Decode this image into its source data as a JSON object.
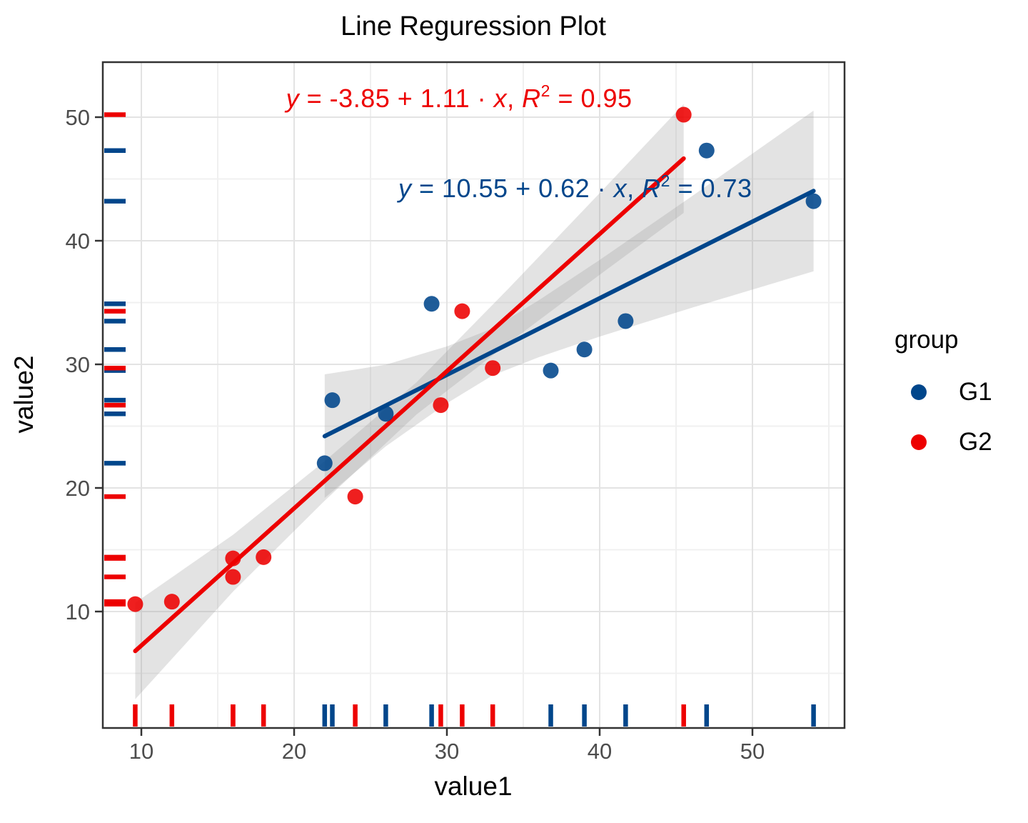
{
  "chart_data": {
    "type": "scatter",
    "title": "Line Reguression Plot",
    "xlabel": "value1",
    "ylabel": "value2",
    "xlim": [
      7.5,
      56
    ],
    "ylim": [
      0.5,
      54.5
    ],
    "x_ticks": [
      10,
      20,
      30,
      40,
      50
    ],
    "y_ticks": [
      10,
      20,
      30,
      40,
      50
    ],
    "x_minor": [
      15,
      25,
      35,
      45,
      55
    ],
    "y_minor": [
      5,
      15,
      25,
      35,
      45
    ],
    "grid": "on",
    "has_rug": true,
    "colors": {
      "g1": "#00468B",
      "g2": "#ED0000",
      "band": "#999999",
      "grid_major": "#e3e3e3",
      "grid_minor": "#f0f0f0",
      "axis_text": "#4d4d4d",
      "panel_border": "#333333"
    },
    "series": [
      {
        "name": "G1",
        "color": "#00468B",
        "points": [
          [
            22,
            22
          ],
          [
            22.5,
            27.1
          ],
          [
            26,
            26
          ],
          [
            29,
            34.9
          ],
          [
            36.8,
            29.5
          ],
          [
            39,
            31.2
          ],
          [
            41.7,
            33.5
          ],
          [
            47,
            47.3
          ],
          [
            54,
            43.2
          ]
        ],
        "regression": {
          "intercept": 10.55,
          "slope": 0.62,
          "r2": 0.73,
          "x_range": [
            22,
            54
          ]
        },
        "ci_halfwidth": [
          [
            22,
            5.0
          ],
          [
            26,
            3.3
          ],
          [
            30,
            2.3
          ],
          [
            33,
            1.9
          ],
          [
            36,
            2.3
          ],
          [
            40,
            3.1
          ],
          [
            46,
            4.5
          ],
          [
            54,
            6.5
          ]
        ]
      },
      {
        "name": "G2",
        "color": "#ED0000",
        "points": [
          [
            9.6,
            10.6
          ],
          [
            12,
            10.8
          ],
          [
            16,
            12.8
          ],
          [
            16,
            14.3
          ],
          [
            18,
            14.4
          ],
          [
            24,
            19.3
          ],
          [
            29.6,
            26.7
          ],
          [
            31,
            34.3
          ],
          [
            33,
            29.7
          ],
          [
            45.5,
            50.2
          ]
        ],
        "regression": {
          "intercept": -3.85,
          "slope": 1.11,
          "r2": 0.95,
          "x_range": [
            9.6,
            45.5
          ]
        },
        "ci_halfwidth": [
          [
            9.6,
            3.9
          ],
          [
            16,
            2.3
          ],
          [
            22,
            1.6
          ],
          [
            28,
            1.3
          ],
          [
            34,
            2.2
          ],
          [
            40,
            3.3
          ],
          [
            45.5,
            4.4
          ]
        ]
      }
    ],
    "equations": [
      {
        "series": "G2",
        "color": "#ED0000",
        "x": 30.8,
        "y": 51.5,
        "text": "y = -3.85 + 1.11 · x,  R² = 0.95",
        "parts": [
          {
            "t": "y",
            "i": true
          },
          {
            "t": " = -3.85 + 1.11 · "
          },
          {
            "t": "x",
            "i": true
          },
          {
            "t": ",   "
          },
          {
            "t": "R",
            "i": true
          },
          {
            "t": "2",
            "sup": true
          },
          {
            "t": " = 0.95"
          }
        ]
      },
      {
        "series": "G1",
        "color": "#00468B",
        "x": 38.4,
        "y": 44.2,
        "text": "y = 10.55 + 0.62 · x,  R² = 0.73",
        "parts": [
          {
            "t": "y",
            "i": true
          },
          {
            "t": " = 10.55 + 0.62 · "
          },
          {
            "t": "x",
            "i": true
          },
          {
            "t": ",   "
          },
          {
            "t": "R",
            "i": true
          },
          {
            "t": "2",
            "sup": true
          },
          {
            "t": " = 0.73"
          }
        ]
      }
    ],
    "legend": {
      "title": "group",
      "items": [
        {
          "label": "G1",
          "color": "#00468B"
        },
        {
          "label": "G2",
          "color": "#ED0000"
        }
      ]
    }
  }
}
